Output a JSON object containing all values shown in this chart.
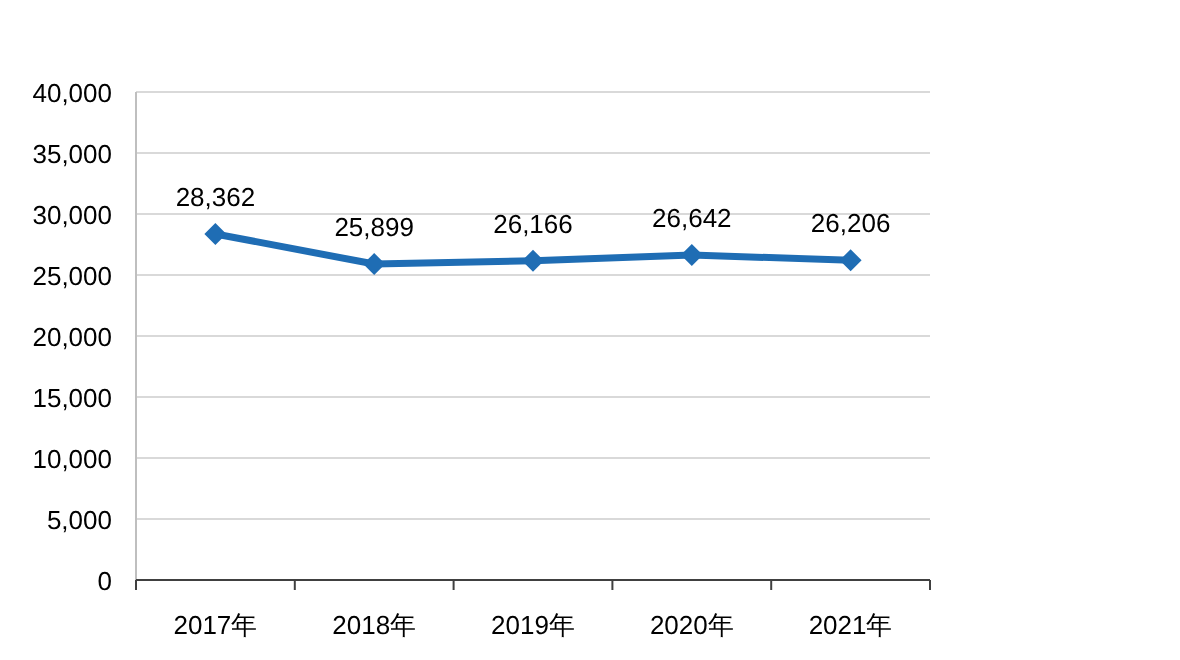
{
  "chart_data": {
    "type": "line",
    "categories": [
      "2017年",
      "2018年",
      "2019年",
      "2020年",
      "2021年"
    ],
    "series": [
      {
        "color": "#1f6db4",
        "values": [
          28362,
          25899,
          26166,
          26642,
          26206
        ],
        "value_labels": [
          "28,362",
          "25,899",
          "26,166",
          "26,642",
          "26,206"
        ]
      }
    ],
    "ylim": [
      0,
      40000
    ],
    "yticks": [
      0,
      {
        "value": 5000,
        "label": "5,000"
      },
      {
        "value": 10000,
        "label": "10,000"
      },
      {
        "value": 15000,
        "label": "15,000"
      },
      {
        "value": 20000,
        "label": "20,000"
      },
      {
        "value": 25000,
        "label": "25,000"
      },
      {
        "value": 30000,
        "label": "30,000"
      },
      {
        "value": 35000,
        "label": "35,000"
      },
      {
        "value": 40000,
        "label": "40,000"
      }
    ],
    "grid": "y",
    "marker": "diamond",
    "line_style": "solid"
  }
}
